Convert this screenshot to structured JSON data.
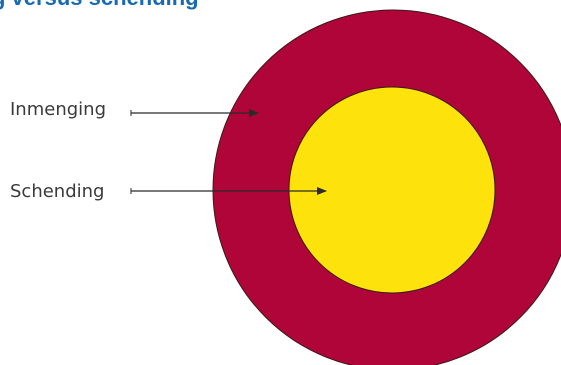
{
  "title": "g versus schending",
  "colors": {
    "title": "#1a6ab3",
    "outer_fill": "#b00538",
    "inner_fill": "#fde20b",
    "outline": "#3a1a1a",
    "arrow": "#2b2b2b"
  },
  "labels": {
    "outer": "Inmenging",
    "inner": "Schending"
  }
}
